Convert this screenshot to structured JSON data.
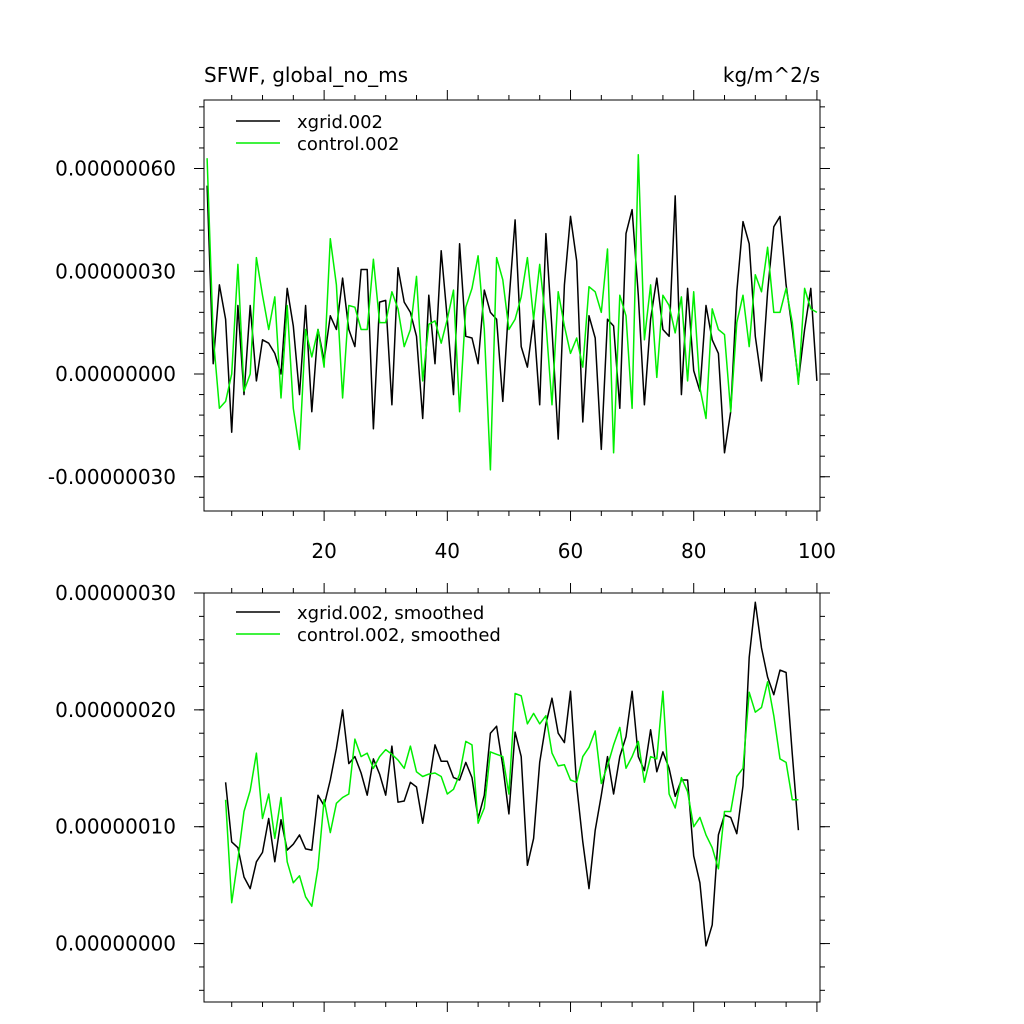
{
  "chart_data": [
    {
      "type": "line",
      "title": "SFWF, global_no_ms",
      "units": "kg/m^2/s",
      "xlim": [
        0.5,
        100.5
      ],
      "ylim": [
        -4e-07,
        8e-07
      ],
      "yticks": [
        -3e-07,
        0.0,
        3e-07,
        6e-07
      ],
      "ytick_labels": [
        "-0.00000030",
        "0.00000000",
        "0.00000030",
        "0.00000060"
      ],
      "xticks": [
        20,
        40,
        60,
        80,
        100
      ],
      "xtick_labels": [
        "20",
        "40",
        "60",
        "80",
        "100"
      ],
      "legend_position": "top-left",
      "series": [
        {
          "name": "xgrid.002",
          "color": "#000000",
          "x": [
            1,
            2,
            3,
            4,
            5,
            6,
            7,
            8,
            9,
            10,
            11,
            12,
            13,
            14,
            15,
            16,
            17,
            18,
            19,
            20,
            21,
            22,
            23,
            24,
            25,
            26,
            27,
            28,
            29,
            30,
            31,
            32,
            33,
            34,
            35,
            36,
            37,
            38,
            39,
            40,
            41,
            42,
            43,
            44,
            45,
            46,
            47,
            48,
            49,
            50,
            51,
            52,
            53,
            54,
            55,
            56,
            57,
            58,
            59,
            60,
            61,
            62,
            63,
            64,
            65,
            66,
            67,
            68,
            69,
            70,
            71,
            72,
            73,
            74,
            75,
            76,
            77,
            78,
            79,
            80,
            81,
            82,
            83,
            84,
            85,
            86,
            87,
            88,
            89,
            90,
            91,
            92,
            93,
            94,
            95,
            96,
            97,
            98,
            99,
            100
          ],
          "values": [
            5.5e-07,
            3e-08,
            2.6e-07,
            1.6e-07,
            -1.7e-07,
            2e-07,
            -6e-08,
            2e-07,
            -2e-08,
            1e-07,
            9e-08,
            6e-08,
            0.0,
            2.5e-07,
            1.4e-07,
            -6e-08,
            2e-07,
            -1.1e-07,
            1.3e-07,
            4e-08,
            1.7e-07,
            1.3e-07,
            2.8e-07,
            1.3e-07,
            8e-08,
            3.05e-07,
            3.05e-07,
            -1.6e-07,
            2.1e-07,
            2.15e-07,
            -9e-08,
            3.1e-07,
            2.1e-07,
            1.8e-07,
            1.1e-07,
            -1.3e-07,
            2.3e-07,
            3e-08,
            3.6e-07,
            1.6e-07,
            -6e-08,
            3.8e-07,
            1.1e-07,
            1.05e-07,
            3e-08,
            2.45e-07,
            1.8e-07,
            1.6e-07,
            -8e-08,
            2.1e-07,
            4.5e-07,
            8e-08,
            2e-08,
            1.6e-07,
            -9e-08,
            4.1e-07,
            1.3e-07,
            -1.9e-07,
            2.6e-07,
            4.6e-07,
            3.3e-07,
            -1.4e-07,
            1.7e-07,
            1.05e-07,
            -2.2e-07,
            1.6e-07,
            1.4e-07,
            -1e-07,
            4.1e-07,
            4.8e-07,
            2.3e-07,
            -9e-08,
            1.6e-07,
            2.8e-07,
            1.3e-07,
            1.1e-07,
            5.2e-07,
            -6e-08,
            2.5e-07,
            1e-08,
            -5e-08,
            2e-07,
            1e-07,
            6e-08,
            -2.3e-07,
            -1.1e-07,
            2.4e-07,
            4.45e-07,
            3.8e-07,
            1.1e-07,
            -2e-08,
            2.4e-07,
            4.3e-07,
            4.6e-07,
            2.6e-07,
            1.3e-07,
            -2e-08,
            1.3e-07,
            2.5e-07,
            -2e-08
          ]
        },
        {
          "name": "control.002",
          "color": "#00ee00",
          "x": [
            1,
            2,
            3,
            4,
            5,
            6,
            7,
            8,
            9,
            10,
            11,
            12,
            13,
            14,
            15,
            16,
            17,
            18,
            19,
            20,
            21,
            22,
            23,
            24,
            25,
            26,
            27,
            28,
            29,
            30,
            31,
            32,
            33,
            34,
            35,
            36,
            37,
            38,
            39,
            40,
            41,
            42,
            43,
            44,
            45,
            46,
            47,
            48,
            49,
            50,
            51,
            52,
            53,
            54,
            55,
            56,
            57,
            58,
            59,
            60,
            61,
            62,
            63,
            64,
            65,
            66,
            67,
            68,
            69,
            70,
            71,
            72,
            73,
            74,
            75,
            76,
            77,
            78,
            79,
            80,
            81,
            82,
            83,
            84,
            85,
            86,
            87,
            88,
            89,
            90,
            91,
            92,
            93,
            94,
            95,
            96,
            97,
            98,
            99,
            100
          ],
          "values": [
            6.3e-07,
            1.1e-07,
            -1e-07,
            -8e-08,
            0.0,
            3.2e-07,
            -5e-08,
            0.0,
            3.4e-07,
            2.3e-07,
            1.3e-07,
            2.25e-07,
            -7e-08,
            2e-07,
            -1e-07,
            -2.2e-07,
            1.3e-07,
            5e-08,
            1.3e-07,
            2e-08,
            3.95e-07,
            2.6e-07,
            -7e-08,
            2e-07,
            1.95e-07,
            1.3e-07,
            1.3e-07,
            3.35e-07,
            1.5e-07,
            1.5e-07,
            2.4e-07,
            1.9e-07,
            8e-08,
            1.3e-07,
            2.85e-07,
            -2e-08,
            1.45e-07,
            1.55e-07,
            9e-08,
            1.6e-07,
            2.45e-07,
            -1.1e-07,
            1.95e-07,
            2.5e-07,
            3.45e-07,
            1.3e-07,
            -2.8e-07,
            3.4e-07,
            2.75e-07,
            1.3e-07,
            1.6e-07,
            2.25e-07,
            3.4e-07,
            1.6e-07,
            3.2e-07,
            1.5e-07,
            -9e-08,
            2.4e-07,
            1.4e-07,
            6e-08,
            1.05e-07,
            2e-08,
            2.55e-07,
            2.4e-07,
            1.8e-07,
            3.65e-07,
            -2.3e-07,
            2.3e-07,
            1.7e-07,
            -1e-07,
            6.4e-07,
            1e-07,
            2.6e-07,
            -1e-08,
            2.3e-07,
            2e-07,
            1.2e-07,
            2.25e-07,
            -2e-08,
            2.4e-07,
            -4e-08,
            -1.3e-07,
            1.9e-07,
            1.3e-07,
            1.15e-07,
            -1.1e-07,
            1.5e-07,
            2.3e-07,
            8e-08,
            2.9e-07,
            2.4e-07,
            3.7e-07,
            1.8e-07,
            1.8e-07,
            2.5e-07,
            1.5e-07,
            -3e-08,
            2.5e-07,
            1.9e-07,
            1.8e-07
          ]
        }
      ]
    },
    {
      "type": "line",
      "xlim": [
        0.5,
        100.5
      ],
      "ylim": [
        -5e-08,
        3e-07
      ],
      "yticks": [
        0.0,
        1e-07,
        2e-07,
        3e-07
      ],
      "ytick_labels": [
        "0.00000000",
        "0.00000010",
        "0.00000020",
        "0.00000030"
      ],
      "xticks": [
        20,
        40,
        60,
        80,
        100
      ],
      "xtick_labels": [],
      "legend_position": "top-left",
      "series": [
        {
          "name": "xgrid.002, smoothed",
          "color": "#000000",
          "x": [
            4,
            5,
            6,
            7,
            8,
            9,
            10,
            11,
            12,
            13,
            14,
            15,
            16,
            17,
            18,
            19,
            20,
            21,
            22,
            23,
            24,
            25,
            26,
            27,
            28,
            29,
            30,
            31,
            32,
            33,
            34,
            35,
            36,
            37,
            38,
            39,
            40,
            41,
            42,
            43,
            44,
            45,
            46,
            47,
            48,
            49,
            50,
            51,
            52,
            53,
            54,
            55,
            56,
            57,
            58,
            59,
            60,
            61,
            62,
            63,
            64,
            65,
            66,
            67,
            68,
            69,
            70,
            71,
            72,
            73,
            74,
            75,
            76,
            77,
            78,
            79,
            80,
            81,
            82,
            83,
            84,
            85,
            86,
            87,
            88,
            89,
            90,
            91,
            92,
            93,
            94,
            95,
            96,
            97
          ],
          "values": [
            1.38e-07,
            8.7e-08,
            8.2e-08,
            5.7e-08,
            4.7e-08,
            7e-08,
            7.8e-08,
            1.07e-07,
            7e-08,
            1.06e-07,
            8e-08,
            8.5e-08,
            9.3e-08,
            8.1e-08,
            8e-08,
            1.27e-07,
            1.18e-07,
            1.4e-07,
            1.67e-07,
            2e-07,
            1.54e-07,
            1.6e-07,
            1.46e-07,
            1.27e-07,
            1.58e-07,
            1.45e-07,
            1.27e-07,
            1.69e-07,
            1.21e-07,
            1.22e-07,
            1.38e-07,
            1.34e-07,
            1.03e-07,
            1.36e-07,
            1.7e-07,
            1.56e-07,
            1.56e-07,
            1.42e-07,
            1.4e-07,
            1.55e-07,
            1.42e-07,
            1.07e-07,
            1.27e-07,
            1.8e-07,
            1.86e-07,
            1.52e-07,
            1.11e-07,
            1.81e-07,
            1.6e-07,
            6.7e-08,
            9e-08,
            1.55e-07,
            1.88e-07,
            2.1e-07,
            1.8e-07,
            1.72e-07,
            2.16e-07,
            1.35e-07,
            8.7e-08,
            4.7e-08,
            9.7e-08,
            1.27e-07,
            1.6e-07,
            1.28e-07,
            1.6e-07,
            1.77e-07,
            2.16e-07,
            1.6e-07,
            1.48e-07,
            1.83e-07,
            1.47e-07,
            1.64e-07,
            1.5e-07,
            1.26e-07,
            1.4e-07,
            1.4e-07,
            7.5e-08,
            5.2e-08,
            -2e-09,
            1.6e-08,
            9.3e-08,
            1.1e-07,
            1.08e-07,
            9.4e-08,
            1.35e-07,
            2.45e-07,
            2.92e-07,
            2.53e-07,
            2.28e-07,
            2.13e-07,
            2.34e-07,
            2.32e-07,
            1.62e-07,
            9.7e-08
          ]
        },
        {
          "name": "control.002, smoothed",
          "color": "#00ee00",
          "x": [
            4,
            5,
            6,
            7,
            8,
            9,
            10,
            11,
            12,
            13,
            14,
            15,
            16,
            17,
            18,
            19,
            20,
            21,
            22,
            23,
            24,
            25,
            26,
            27,
            28,
            29,
            30,
            31,
            32,
            33,
            34,
            35,
            36,
            37,
            38,
            39,
            40,
            41,
            42,
            43,
            44,
            45,
            46,
            47,
            48,
            49,
            50,
            51,
            52,
            53,
            54,
            55,
            56,
            57,
            58,
            59,
            60,
            61,
            62,
            63,
            64,
            65,
            66,
            67,
            68,
            69,
            70,
            71,
            72,
            73,
            74,
            75,
            76,
            77,
            78,
            79,
            80,
            81,
            82,
            83,
            84,
            85,
            86,
            87,
            88,
            89,
            90,
            91,
            92,
            93,
            94,
            95,
            96,
            97
          ],
          "values": [
            1.23e-07,
            3.5e-08,
            7.2e-08,
            1.13e-07,
            1.31e-07,
            1.63e-07,
            1.07e-07,
            1.28e-07,
            9e-08,
            1.25e-07,
            7e-08,
            5.2e-08,
            5.8e-08,
            4e-08,
            3.2e-08,
            6.5e-08,
            1.23e-07,
            9.5e-08,
            1.2e-07,
            1.25e-07,
            1.28e-07,
            1.75e-07,
            1.6e-07,
            1.63e-07,
            1.5e-07,
            1.6e-07,
            1.66e-07,
            1.62e-07,
            1.57e-07,
            1.5e-07,
            1.69e-07,
            1.47e-07,
            1.43e-07,
            1.45e-07,
            1.46e-07,
            1.43e-07,
            1.28e-07,
            1.32e-07,
            1.45e-07,
            1.73e-07,
            1.7e-07,
            1.03e-07,
            1.16e-07,
            1.64e-07,
            1.62e-07,
            1.6e-07,
            1.28e-07,
            2.14e-07,
            2.12e-07,
            1.88e-07,
            1.97e-07,
            1.88e-07,
            1.95e-07,
            1.63e-07,
            1.52e-07,
            1.53e-07,
            1.4e-07,
            1.38e-07,
            1.6e-07,
            1.68e-07,
            1.82e-07,
            1.37e-07,
            1.52e-07,
            1.7e-07,
            1.85e-07,
            1.5e-07,
            1.6e-07,
            1.73e-07,
            1.38e-07,
            1.6e-07,
            1.58e-07,
            2.16e-07,
            1.28e-07,
            1.16e-07,
            1.42e-07,
            1.3e-07,
            1e-07,
            1.08e-07,
            9.3e-08,
            8.2e-08,
            6.4e-08,
            1.13e-07,
            1.13e-07,
            1.43e-07,
            1.5e-07,
            2.15e-07,
            1.98e-07,
            2.02e-07,
            2.24e-07,
            1.95e-07,
            1.58e-07,
            1.55e-07,
            1.23e-07,
            1.23e-07
          ]
        }
      ]
    }
  ]
}
